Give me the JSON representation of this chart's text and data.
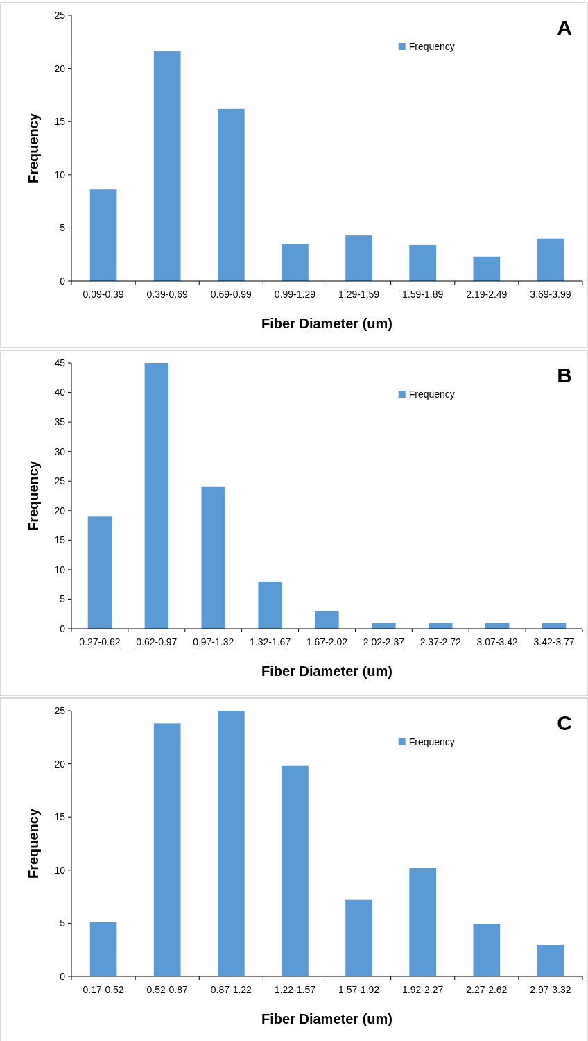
{
  "chart_data": [
    {
      "type": "bar",
      "annotations": [
        "A"
      ],
      "xlabel": "Fiber Diameter (um)",
      "ylabel": "Frequency",
      "categories": [
        "0.09-0.39",
        "0.39-0.69",
        "0.69-0.99",
        "0.99-1.29",
        "1.29-1.59",
        "1.59-1.89",
        "2.19-2.49",
        "3.69-3.99"
      ],
      "series": [
        {
          "name": "Frequency",
          "color": "#5b9bd5",
          "values": [
            8.6,
            21.6,
            16.2,
            3.5,
            4.3,
            3.4,
            2.3,
            4.0
          ]
        }
      ],
      "ylim": [
        0,
        25
      ],
      "yticks": [
        0,
        5,
        10,
        15,
        20,
        25
      ],
      "legend": "top right"
    },
    {
      "type": "bar",
      "annotations": [
        "B"
      ],
      "xlabel": "Fiber Diameter (um)",
      "ylabel": "Frequency",
      "categories": [
        "0.27-0.62",
        "0.62-0.97",
        "0.97-1.32",
        "1.32-1.67",
        "1.67-2.02",
        "2.02-2.37",
        "2.37-2.72",
        "3.07-3.42",
        "3.42-3.77"
      ],
      "series": [
        {
          "name": "Frequency",
          "color": "#5b9bd5",
          "values": [
            19,
            45,
            24,
            8,
            3,
            1,
            1,
            1,
            1
          ]
        }
      ],
      "ylim": [
        0,
        45
      ],
      "yticks": [
        0,
        5,
        10,
        15,
        20,
        25,
        30,
        35,
        40,
        45
      ],
      "legend": "top right"
    },
    {
      "type": "bar",
      "annotations": [
        "C"
      ],
      "xlabel": "Fiber Diameter (um)",
      "ylabel": "Frequency",
      "categories": [
        "0.17-0.52",
        "0.52-0.87",
        "0.87-1.22",
        "1.22-1.57",
        "1.57-1.92",
        "1.92-2.27",
        "2.27-2.62",
        "2.97-3.32"
      ],
      "series": [
        {
          "name": "Frequency",
          "color": "#5b9bd5",
          "values": [
            5.1,
            23.8,
            25,
            19.8,
            7.2,
            10.2,
            4.9,
            3.0
          ]
        }
      ],
      "ylim": [
        0,
        25
      ],
      "yticks": [
        0,
        5,
        10,
        15,
        20,
        25
      ],
      "legend": "top right"
    }
  ]
}
